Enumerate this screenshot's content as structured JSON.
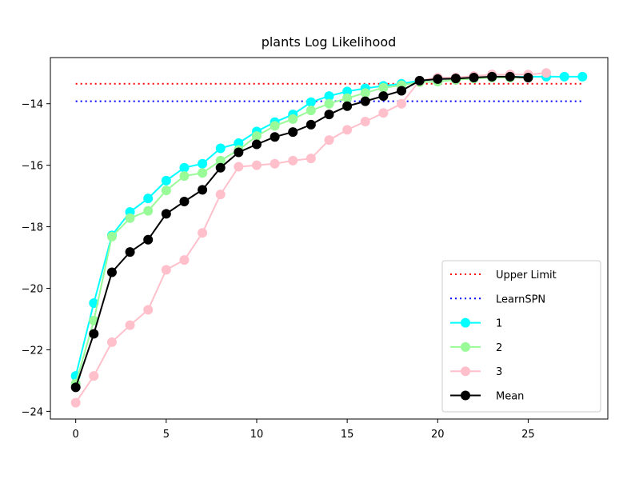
{
  "chart_data": {
    "type": "line",
    "title": "plants Log Likelihood",
    "xlabel": "",
    "ylabel": "",
    "xlim": [
      -1.4,
      29.4
    ],
    "ylim": [
      -24.25,
      -12.5
    ],
    "x_ticks": [
      0,
      5,
      10,
      15,
      20,
      25
    ],
    "y_ticks": [
      -24,
      -22,
      -20,
      -18,
      -16,
      -14
    ],
    "y_tick_labels": [
      "−24",
      "−22",
      "−20",
      "−18",
      "−16",
      "−14"
    ],
    "grid": false,
    "legend_position": "lower-right",
    "reference_lines": [
      {
        "name": "Upper Limit",
        "y": -13.35,
        "x_range": [
          0,
          28
        ],
        "color": "#ff0000",
        "style": "dotted"
      },
      {
        "name": "LearnSPN",
        "y": -13.92,
        "x_range": [
          0,
          28
        ],
        "color": "#0000ff",
        "style": "dotted"
      }
    ],
    "series": [
      {
        "name": "1",
        "color": "#00ffff",
        "x": [
          0,
          1,
          2,
          3,
          4,
          5,
          6,
          7,
          8,
          9,
          10,
          11,
          12,
          13,
          14,
          15,
          16,
          17,
          18,
          19,
          20,
          21,
          22,
          23,
          24,
          25,
          26,
          27,
          28
        ],
        "values": [
          -22.85,
          -20.48,
          -18.28,
          -17.52,
          -17.08,
          -16.5,
          -16.08,
          -15.95,
          -15.45,
          -15.28,
          -14.9,
          -14.6,
          -14.35,
          -13.95,
          -13.75,
          -13.6,
          -13.5,
          -13.42,
          -13.35,
          -13.25,
          -13.2,
          -13.18,
          -13.15,
          -13.14,
          -13.13,
          -13.12,
          -13.12,
          -13.12,
          -13.12
        ]
      },
      {
        "name": "2",
        "color": "#98fb98",
        "x": [
          0,
          1,
          2,
          3,
          4,
          5,
          6,
          7,
          8,
          9,
          10,
          11,
          12,
          13,
          14,
          15,
          16,
          17,
          18,
          19,
          20,
          21,
          22,
          23,
          24,
          25
        ],
        "values": [
          -23.1,
          -21.05,
          -18.32,
          -17.72,
          -17.48,
          -16.82,
          -16.35,
          -16.25,
          -15.85,
          -15.5,
          -15.05,
          -14.72,
          -14.5,
          -14.22,
          -14.0,
          -13.82,
          -13.65,
          -13.48,
          -13.4,
          -13.3,
          -13.28,
          -13.22,
          -13.18,
          -13.15,
          -13.15,
          -13.15
        ]
      },
      {
        "name": "3",
        "color": "#ffc0cb",
        "x": [
          0,
          1,
          2,
          3,
          4,
          5,
          6,
          7,
          8,
          9,
          10,
          11,
          12,
          13,
          14,
          15,
          16,
          17,
          18,
          19,
          20,
          21,
          22,
          23,
          24,
          25,
          26
        ],
        "values": [
          -23.72,
          -22.85,
          -21.75,
          -21.2,
          -20.7,
          -19.4,
          -19.08,
          -18.2,
          -16.95,
          -16.05,
          -16.0,
          -15.95,
          -15.85,
          -15.78,
          -15.18,
          -14.85,
          -14.58,
          -14.3,
          -14.0,
          -13.25,
          -13.15,
          -13.15,
          -13.1,
          -13.05,
          -13.05,
          -13.05,
          -13.0
        ]
      },
      {
        "name": "Mean",
        "color": "#000000",
        "x": [
          0,
          1,
          2,
          3,
          4,
          5,
          6,
          7,
          8,
          9,
          10,
          11,
          12,
          13,
          14,
          15,
          16,
          17,
          18,
          19,
          20,
          21,
          22,
          23,
          24,
          25
        ],
        "values": [
          -23.22,
          -21.48,
          -19.48,
          -18.82,
          -18.42,
          -17.58,
          -17.18,
          -16.8,
          -16.08,
          -15.58,
          -15.32,
          -15.08,
          -14.92,
          -14.68,
          -14.35,
          -14.08,
          -13.92,
          -13.75,
          -13.58,
          -13.25,
          -13.2,
          -13.18,
          -13.15,
          -13.12,
          -13.12,
          -13.15
        ]
      }
    ]
  }
}
